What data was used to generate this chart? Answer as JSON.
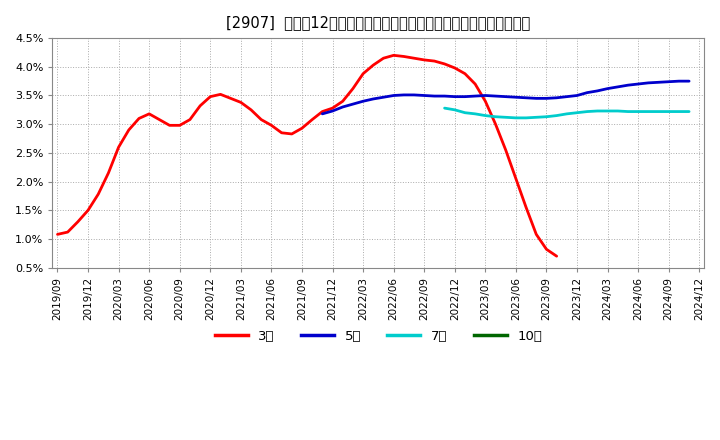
{
  "title": "[2907]  売上高12か月移動合計の対前年同期増減率の標準偏差の推移",
  "background_color": "#ffffff",
  "plot_bg_color": "#ffffff",
  "grid_color": "#aaaaaa",
  "ylim": [
    0.005,
    0.045
  ],
  "yticks": [
    0.005,
    0.01,
    0.015,
    0.02,
    0.025,
    0.03,
    0.035,
    0.04,
    0.045
  ],
  "ytick_labels": [
    "0.5%",
    "1.0%",
    "1.5%",
    "2.0%",
    "2.5%",
    "3.0%",
    "3.5%",
    "4.0%",
    "4.5%"
  ],
  "series": {
    "3年": {
      "color": "#ff0000",
      "y": [
        0.0108,
        0.0112,
        0.013,
        0.015,
        0.0178,
        0.0215,
        0.026,
        0.029,
        0.031,
        0.0318,
        0.0308,
        0.0298,
        0.0298,
        0.0308,
        0.0332,
        0.0348,
        0.0352,
        0.0345,
        0.0338,
        0.0325,
        0.0308,
        0.0298,
        0.0285,
        0.0283,
        0.0293,
        0.0308,
        0.0322,
        0.0328,
        0.034,
        0.0362,
        0.0388,
        0.0403,
        0.0415,
        0.042,
        0.0418,
        0.0415,
        0.0412,
        0.041,
        0.0405,
        0.0398,
        0.0388,
        0.037,
        0.034,
        0.03,
        0.0255,
        0.0205,
        0.0155,
        0.0108,
        0.0082,
        0.007,
        null,
        null,
        null,
        null,
        null,
        null,
        null,
        null,
        null,
        null,
        null,
        null,
        null
      ]
    },
    "5年": {
      "color": "#0000cc",
      "y": [
        null,
        null,
        null,
        null,
        null,
        null,
        null,
        null,
        null,
        null,
        null,
        null,
        null,
        null,
        null,
        null,
        null,
        null,
        null,
        null,
        null,
        null,
        null,
        null,
        null,
        null,
        0.0318,
        0.0323,
        0.033,
        0.0335,
        0.034,
        0.0344,
        0.0347,
        0.035,
        0.0351,
        0.0351,
        0.035,
        0.0349,
        0.0349,
        0.0348,
        0.0348,
        0.0349,
        0.035,
        0.0349,
        0.0348,
        0.0347,
        0.0346,
        0.0345,
        0.0345,
        0.0346,
        0.0348,
        0.035,
        0.0355,
        0.0358,
        0.0362,
        0.0365,
        0.0368,
        0.037,
        0.0372,
        0.0373,
        0.0374,
        0.0375,
        0.0375
      ]
    },
    "7年": {
      "color": "#00cccc",
      "y": [
        null,
        null,
        null,
        null,
        null,
        null,
        null,
        null,
        null,
        null,
        null,
        null,
        null,
        null,
        null,
        null,
        null,
        null,
        null,
        null,
        null,
        null,
        null,
        null,
        null,
        null,
        null,
        null,
        null,
        null,
        null,
        null,
        null,
        null,
        null,
        null,
        null,
        null,
        0.0328,
        0.0325,
        0.032,
        0.0318,
        0.0315,
        0.0313,
        0.0312,
        0.0311,
        0.0311,
        0.0312,
        0.0313,
        0.0315,
        0.0318,
        0.032,
        0.0322,
        0.0323,
        0.0323,
        0.0323,
        0.0322,
        0.0322,
        0.0322,
        0.0322,
        0.0322,
        0.0322,
        0.0322
      ]
    },
    "10年": {
      "color": "#006600",
      "y": [
        null,
        null,
        null,
        null,
        null,
        null,
        null,
        null,
        null,
        null,
        null,
        null,
        null,
        null,
        null,
        null,
        null,
        null,
        null,
        null,
        null,
        null,
        null,
        null,
        null,
        null,
        null,
        null,
        null,
        null,
        null,
        null,
        null,
        null,
        null,
        null,
        null,
        null,
        null,
        null,
        null,
        null,
        null,
        null,
        null,
        null,
        null,
        null,
        null,
        null,
        null,
        null,
        null,
        null,
        null,
        null,
        null,
        null,
        null,
        null,
        null,
        null,
        null
      ]
    }
  },
  "x_tick_labels": [
    "2019/09",
    "2019/12",
    "2020/03",
    "2020/06",
    "2020/09",
    "2020/12",
    "2021/03",
    "2021/06",
    "2021/09",
    "2021/12",
    "2022/03",
    "2022/06",
    "2022/09",
    "2022/12",
    "2023/03",
    "2023/06",
    "2023/09",
    "2023/12",
    "2024/03",
    "2024/06",
    "2024/09",
    "2024/12"
  ],
  "x_tick_positions": [
    0,
    3,
    6,
    9,
    12,
    15,
    18,
    21,
    24,
    27,
    30,
    33,
    36,
    39,
    42,
    45,
    48,
    51,
    54,
    57,
    60,
    63
  ],
  "legend_labels": [
    "3年",
    "5年",
    "7年",
    "10年"
  ],
  "legend_colors": [
    "#ff0000",
    "#0000cc",
    "#00cccc",
    "#006600"
  ]
}
